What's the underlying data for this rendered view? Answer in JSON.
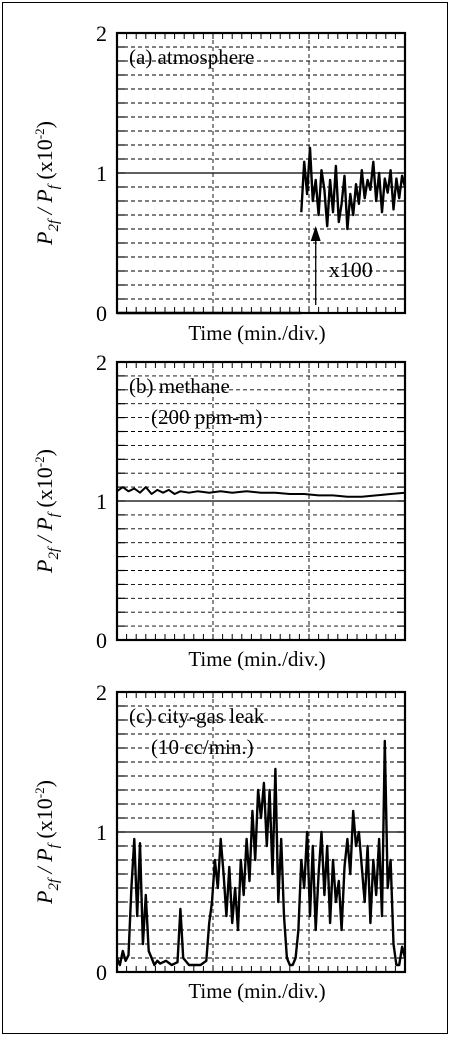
{
  "chart_data": [
    {
      "type": "line",
      "panel_label": "(a) atmosphere",
      "panel_label_line2": "",
      "ylabel_main": "P",
      "ylabel_sub1": "2f",
      "ylabel_slash": " / ",
      "ylabel_main2": "P",
      "ylabel_sub2": "f",
      "ylabel_unit": "(x10",
      "ylabel_unit_exp": "-2",
      "ylabel_unit_close": ")",
      "xlabel": "Time (min./div.)",
      "ylim": [
        0,
        2
      ],
      "y_ticks": [
        "0",
        "1",
        "2"
      ],
      "annotation": "x100",
      "x_range": [
        0,
        1
      ],
      "series": [
        {
          "x": [
            0.0,
            0.64
          ],
          "y": [
            0.0,
            0.0
          ]
        },
        {
          "x": [
            0.64,
            0.65,
            0.66,
            0.67,
            0.68,
            0.69,
            0.7,
            0.71,
            0.72,
            0.73,
            0.74,
            0.75,
            0.76,
            0.77,
            0.78,
            0.79,
            0.8,
            0.81,
            0.82,
            0.83,
            0.84,
            0.85,
            0.86,
            0.87,
            0.88,
            0.89,
            0.9,
            0.91,
            0.92,
            0.93,
            0.94,
            0.95,
            0.96,
            0.97,
            0.98,
            0.99,
            1.0
          ],
          "y": [
            0.72,
            1.08,
            0.85,
            1.18,
            0.8,
            0.95,
            0.7,
            1.02,
            0.88,
            0.62,
            0.95,
            0.72,
            1.05,
            0.65,
            0.78,
            0.98,
            0.6,
            0.85,
            0.7,
            0.92,
            0.78,
            1.02,
            0.82,
            0.95,
            0.88,
            1.08,
            0.8,
            1.0,
            0.72,
            0.96,
            0.86,
            1.02,
            0.74,
            0.96,
            0.82,
            0.98,
            0.9
          ]
        }
      ]
    },
    {
      "type": "line",
      "panel_label": "(b)  methane",
      "panel_label_line2": "(200 ppm-m)",
      "ylabel_main": "P",
      "ylabel_sub1": "2f",
      "ylabel_slash": " / ",
      "ylabel_main2": "P",
      "ylabel_sub2": "f",
      "ylabel_unit": "(x10",
      "ylabel_unit_exp": "-2",
      "ylabel_unit_close": ")",
      "xlabel": "Time (min./div.)",
      "ylim": [
        0,
        2
      ],
      "y_ticks": [
        "0",
        "1",
        "2"
      ],
      "x_range": [
        0,
        1
      ],
      "series": [
        {
          "x": [
            0.0,
            0.02,
            0.04,
            0.06,
            0.08,
            0.1,
            0.12,
            0.14,
            0.16,
            0.18,
            0.2,
            0.22,
            0.25,
            0.28,
            0.32,
            0.36,
            0.4,
            0.45,
            0.5,
            0.55,
            0.6,
            0.65,
            0.7,
            0.75,
            0.8,
            0.85,
            0.9,
            0.95,
            1.0
          ],
          "y": [
            1.07,
            1.1,
            1.07,
            1.09,
            1.06,
            1.1,
            1.05,
            1.08,
            1.06,
            1.08,
            1.05,
            1.07,
            1.06,
            1.07,
            1.06,
            1.07,
            1.06,
            1.07,
            1.06,
            1.06,
            1.05,
            1.05,
            1.04,
            1.04,
            1.03,
            1.03,
            1.04,
            1.05,
            1.06
          ]
        }
      ]
    },
    {
      "type": "line",
      "panel_label": "(c) city-gas leak",
      "panel_label_line2": "(10 cc/min.)",
      "ylabel_main": "P",
      "ylabel_sub1": "2f",
      "ylabel_slash": " / ",
      "ylabel_main2": "P",
      "ylabel_sub2": "f",
      "ylabel_unit": "(x10",
      "ylabel_unit_exp": "-2",
      "ylabel_unit_close": ")",
      "xlabel": "Time (min./div.)",
      "ylim": [
        0,
        2
      ],
      "y_ticks": [
        "0",
        "1",
        "2"
      ],
      "x_range": [
        0,
        1
      ],
      "series": [
        {
          "x": [
            0.0,
            0.01,
            0.02,
            0.03,
            0.04,
            0.05,
            0.06,
            0.07,
            0.08,
            0.09,
            0.1,
            0.11,
            0.12,
            0.13,
            0.14,
            0.15,
            0.17,
            0.19,
            0.21,
            0.22,
            0.23,
            0.25,
            0.27,
            0.29,
            0.31,
            0.32,
            0.33,
            0.34,
            0.35,
            0.36,
            0.37,
            0.38,
            0.39,
            0.4,
            0.41,
            0.42,
            0.43,
            0.44,
            0.45,
            0.46,
            0.47,
            0.48,
            0.49,
            0.5,
            0.51,
            0.52,
            0.53,
            0.54,
            0.55,
            0.56,
            0.57,
            0.58,
            0.59,
            0.6,
            0.61,
            0.62,
            0.63,
            0.64,
            0.65,
            0.66,
            0.67,
            0.68,
            0.69,
            0.7,
            0.71,
            0.72,
            0.73,
            0.74,
            0.75,
            0.76,
            0.77,
            0.78,
            0.79,
            0.8,
            0.81,
            0.82,
            0.83,
            0.84,
            0.85,
            0.86,
            0.87,
            0.88,
            0.89,
            0.9,
            0.91,
            0.92,
            0.93,
            0.94,
            0.95,
            0.96,
            0.97,
            0.98,
            0.99,
            1.0
          ],
          "y": [
            0.1,
            0.05,
            0.15,
            0.08,
            0.12,
            0.6,
            0.95,
            0.4,
            0.92,
            0.2,
            0.55,
            0.15,
            0.1,
            0.05,
            0.08,
            0.06,
            0.08,
            0.05,
            0.07,
            0.45,
            0.1,
            0.05,
            0.05,
            0.05,
            0.08,
            0.35,
            0.5,
            0.8,
            0.6,
            0.95,
            0.7,
            0.4,
            0.75,
            0.35,
            0.6,
            0.3,
            0.8,
            0.55,
            0.95,
            0.65,
            1.15,
            0.8,
            1.3,
            1.1,
            1.35,
            0.9,
            1.3,
            0.7,
            1.45,
            0.5,
            0.95,
            0.4,
            0.1,
            0.05,
            0.05,
            0.1,
            0.3,
            0.8,
            0.6,
            1.0,
            0.4,
            0.9,
            0.3,
            0.7,
            1.0,
            0.55,
            0.9,
            0.35,
            0.8,
            0.5,
            0.65,
            0.3,
            0.75,
            0.95,
            0.7,
            1.15,
            0.9,
            1.0,
            0.75,
            0.5,
            0.9,
            0.35,
            0.8,
            0.55,
            0.95,
            0.4,
            1.65,
            0.6,
            0.8,
            0.2,
            0.05,
            0.05,
            0.18,
            0.1
          ]
        }
      ]
    }
  ]
}
